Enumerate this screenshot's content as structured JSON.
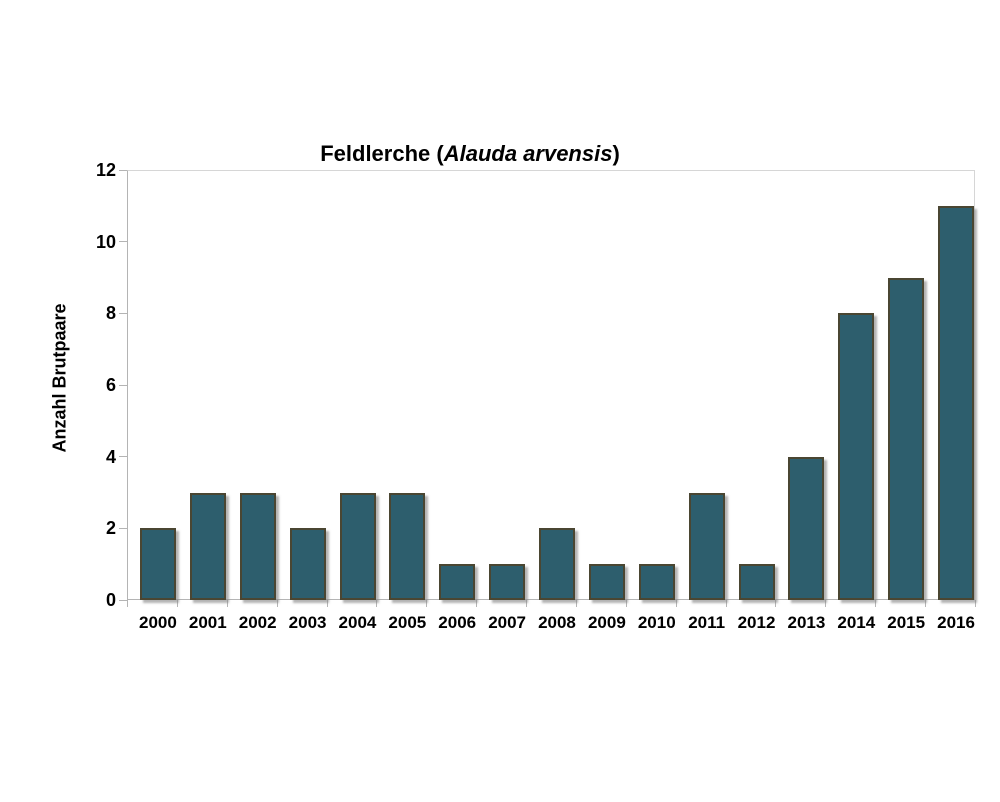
{
  "chart_data": {
    "type": "bar",
    "title": "Feldlerche (Alauda arvensis)",
    "title_parts": {
      "prefix": "Feldlerche (",
      "species": "Alauda arvensis",
      "suffix": ")"
    },
    "categories": [
      "2000",
      "2001",
      "2002",
      "2003",
      "2004",
      "2005",
      "2006",
      "2007",
      "2008",
      "2009",
      "2010",
      "2011",
      "2012",
      "2013",
      "2014",
      "2015",
      "2016"
    ],
    "values": [
      2,
      3,
      3,
      2,
      3,
      3,
      1,
      1,
      2,
      1,
      1,
      3,
      1,
      4,
      8,
      9,
      11
    ],
    "xlabel": "",
    "ylabel": "Anzahl Brutpaare",
    "ylim": [
      0,
      12
    ],
    "yticks": [
      0,
      2,
      4,
      6,
      8,
      10,
      12
    ],
    "grid": false,
    "legend": null,
    "colors": {
      "bar_fill": "#2d5e6d",
      "bar_border": "#4a4632",
      "axis": "#b4b4b4",
      "text": "#000000",
      "background": "#ffffff"
    }
  }
}
